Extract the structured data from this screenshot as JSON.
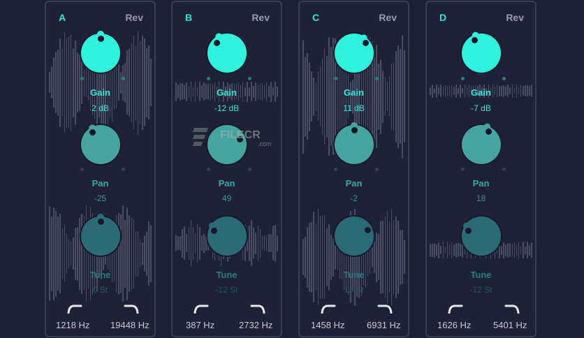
{
  "colors": {
    "background": "#1d1f33",
    "panel_border": "#3a3d57",
    "gain_knob": "#2ef2dc",
    "pan_knob": "#45a3a0",
    "tune_knob": "#2b6b76",
    "gain_text": "#2ee8d6",
    "pan_text": "#3aa9a3",
    "tune_text": "#2b7a82",
    "freq_text": "#c9cad4",
    "rev_text": "#9a9aa8"
  },
  "channels": [
    {
      "letter": "A",
      "rev_label": "Rev",
      "gain": {
        "label": "Gain",
        "value": "2 dB"
      },
      "pan": {
        "label": "Pan",
        "value": "-25"
      },
      "tune": {
        "label": "Tune",
        "value": "0 St"
      },
      "low_cut": "1218 Hz",
      "high_cut": "19448 Hz"
    },
    {
      "letter": "B",
      "rev_label": "Rev",
      "gain": {
        "label": "Gain",
        "value": "-12 dB"
      },
      "pan": {
        "label": "Pan",
        "value": "49"
      },
      "tune": {
        "label": "Tune",
        "value": "-12 St"
      },
      "low_cut": "387 Hz",
      "high_cut": "2732 Hz"
    },
    {
      "letter": "C",
      "rev_label": "Rev",
      "gain": {
        "label": "Gain",
        "value": "11 dB"
      },
      "pan": {
        "label": "Pan",
        "value": "-2"
      },
      "tune": {
        "label": "Tune",
        "value": "12 St"
      },
      "low_cut": "1458 Hz",
      "high_cut": "6931 Hz"
    },
    {
      "letter": "D",
      "rev_label": "Rev",
      "gain": {
        "label": "Gain",
        "value": "-7 dB"
      },
      "pan": {
        "label": "Pan",
        "value": "18"
      },
      "tune": {
        "label": "Tune",
        "value": "-12 St"
      },
      "low_cut": "1626 Hz",
      "high_cut": "5401 Hz"
    }
  ],
  "watermark": {
    "text": "FILECR",
    "suffix": ".com"
  }
}
